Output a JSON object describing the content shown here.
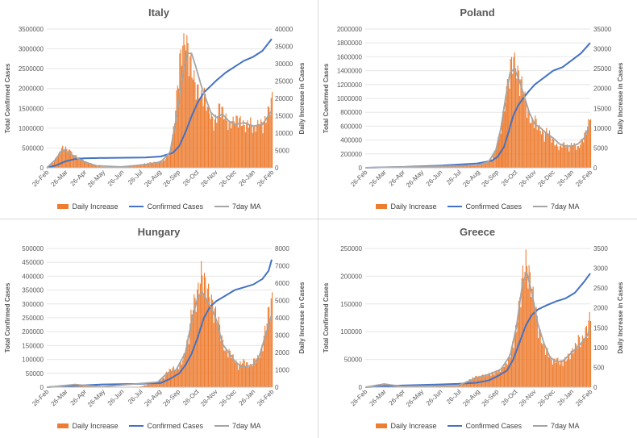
{
  "colors": {
    "daily": "#ed7d31",
    "confirmed": "#4472c4",
    "ma": "#a5a5a5",
    "grid": "#e6e6e6",
    "axis": "#595959"
  },
  "chart_data": [
    {
      "type": "bar",
      "title": "Italy",
      "ylabel": "Total Confirmed Cases",
      "y2label": "Daily Increase in Cases",
      "ylim": [
        0,
        3500000
      ],
      "yticks": [
        "0",
        "500000",
        "1000000",
        "1500000",
        "2000000",
        "2500000",
        "3000000",
        "3500000"
      ],
      "y2lim": [
        0,
        40000
      ],
      "y2ticks": [
        "0",
        "5000",
        "10000",
        "15000",
        "20000",
        "25000",
        "30000",
        "35000",
        "40000"
      ],
      "xticks": [
        "26-Feb",
        "26-Mar",
        "26-Apr",
        "26-May",
        "26-Jun",
        "26-Jul",
        "26-Aug",
        "26-Sep",
        "26-Oct",
        "26-Nov",
        "26-Dec",
        "26-Jan",
        "26-Feb"
      ],
      "legend": [
        "Daily Increase",
        "Confirmed Cases",
        "7day MA"
      ],
      "series": [
        {
          "name": "Daily Increase",
          "kind": "bar",
          "axis": "right",
          "x": [
            0,
            10,
            20,
            25,
            30,
            38,
            45,
            55,
            65,
            75,
            90,
            105,
            120,
            135,
            150,
            165,
            180,
            190,
            200,
            205,
            210,
            215,
            220,
            225,
            230,
            235,
            240,
            245,
            250,
            255,
            260,
            265,
            270,
            275,
            280,
            285,
            290,
            295,
            300,
            305,
            310,
            315,
            320,
            325,
            330,
            335,
            340,
            345,
            350,
            355,
            360,
            365
          ],
          "values": [
            0,
            1500,
            4500,
            5800,
            5500,
            4500,
            3500,
            2500,
            1500,
            800,
            300,
            250,
            250,
            350,
            900,
            1400,
            1700,
            2200,
            5000,
            11000,
            20000,
            30000,
            34000,
            36000,
            32000,
            28000,
            24000,
            22000,
            20000,
            21000,
            17000,
            15000,
            13000,
            14000,
            18000,
            16000,
            14000,
            12000,
            13000,
            13500,
            14000,
            13000,
            12000,
            12500,
            13000,
            11000,
            12000,
            13000,
            12000,
            14000,
            17000,
            20000
          ]
        },
        {
          "name": "Confirmed Cases",
          "kind": "line",
          "axis": "left",
          "x": [
            0,
            15,
            30,
            45,
            60,
            75,
            100,
            130,
            160,
            185,
            205,
            215,
            225,
            235,
            245,
            255,
            265,
            275,
            290,
            305,
            320,
            335,
            350,
            365
          ],
          "values": [
            0,
            60000,
            160000,
            220000,
            240000,
            245000,
            250000,
            255000,
            260000,
            285000,
            380000,
            550000,
            900000,
            1300000,
            1650000,
            1900000,
            2050000,
            2200000,
            2400000,
            2550000,
            2700000,
            2800000,
            2950000,
            3250000
          ]
        },
        {
          "name": "7day MA",
          "kind": "line",
          "axis": "right",
          "x": [
            0,
            15,
            25,
            35,
            45,
            60,
            80,
            120,
            160,
            185,
            200,
            210,
            220,
            228,
            235,
            242,
            250,
            258,
            266,
            275,
            285,
            295,
            305,
            320,
            335,
            350,
            365
          ],
          "values": [
            0,
            2500,
            5200,
            4500,
            3200,
            1800,
            600,
            250,
            900,
            1700,
            4500,
            14000,
            26000,
            33000,
            33000,
            29000,
            24000,
            20000,
            16000,
            14500,
            15500,
            13500,
            12500,
            13000,
            12000,
            12500,
            16500
          ]
        }
      ]
    },
    {
      "type": "bar",
      "title": "Poland",
      "ylabel": "Total Confirmed Cases",
      "y2label": "Daily Increase in Cases",
      "ylim": [
        0,
        2000000
      ],
      "yticks": [
        "0",
        "200000",
        "400000",
        "600000",
        "800000",
        "1000000",
        "1200000",
        "1400000",
        "1600000",
        "1800000",
        "2000000"
      ],
      "y2lim": [
        0,
        35000
      ],
      "y2ticks": [
        "0",
        "5000",
        "10000",
        "15000",
        "20000",
        "25000",
        "30000",
        "35000"
      ],
      "xticks": [
        "26-Feb",
        "26-Mar",
        "26-Apr",
        "26-May",
        "26-Jun",
        "26-Jul",
        "26-Aug",
        "26-Sep",
        "26-Oct",
        "26-Nov",
        "26-Dec",
        "26-Jan",
        "26-Feb"
      ],
      "legend": [
        "Daily Increase",
        "Confirmed Cases",
        "7day MA"
      ],
      "series": [
        {
          "name": "Daily Increase",
          "kind": "bar",
          "axis": "right",
          "x": [
            0,
            30,
            60,
            90,
            120,
            150,
            180,
            195,
            205,
            212,
            218,
            224,
            230,
            235,
            240,
            245,
            250,
            255,
            260,
            265,
            270,
            275,
            280,
            285,
            290,
            295,
            300,
            305,
            310,
            315,
            320,
            325,
            330,
            335,
            340,
            345,
            350,
            355,
            360,
            365
          ],
          "values": [
            0,
            300,
            350,
            300,
            400,
            600,
            700,
            1200,
            2500,
            5000,
            9000,
            14000,
            20000,
            25000,
            27000,
            24000,
            22000,
            20000,
            16000,
            13000,
            11000,
            12000,
            10000,
            9000,
            8000,
            9500,
            8000,
            6500,
            5500,
            5000,
            6000,
            5500,
            5000,
            6000,
            5500,
            5000,
            6500,
            8000,
            10000,
            13000
          ]
        },
        {
          "name": "Confirmed Cases",
          "kind": "line",
          "axis": "left",
          "x": [
            0,
            60,
            120,
            180,
            205,
            215,
            225,
            232,
            240,
            248,
            256,
            265,
            275,
            290,
            305,
            320,
            335,
            350,
            365
          ],
          "values": [
            0,
            12000,
            30000,
            60000,
            100000,
            160000,
            300000,
            500000,
            750000,
            900000,
            1000000,
            1100000,
            1200000,
            1300000,
            1400000,
            1450000,
            1550000,
            1650000,
            1800000
          ]
        },
        {
          "name": "7day MA",
          "kind": "line",
          "axis": "right",
          "x": [
            0,
            180,
            200,
            212,
            220,
            228,
            235,
            242,
            250,
            258,
            266,
            275,
            285,
            295,
            305,
            315,
            325,
            335,
            345,
            355,
            365
          ],
          "values": [
            0,
            600,
            1500,
            4500,
            10000,
            18000,
            24000,
            25000,
            22000,
            18000,
            14000,
            11000,
            10000,
            8500,
            7500,
            6000,
            5500,
            5500,
            6000,
            7500,
            11000
          ]
        }
      ]
    },
    {
      "type": "bar",
      "title": "Hungary",
      "ylabel": "Total Confirmed Cases",
      "y2label": "Daily Increase in Cases",
      "ylim": [
        0,
        500000
      ],
      "yticks": [
        "0",
        "50000",
        "100000",
        "150000",
        "200000",
        "250000",
        "300000",
        "350000",
        "400000",
        "450000",
        "500000"
      ],
      "y2lim": [
        0,
        8000
      ],
      "y2ticks": [
        "0",
        "1000",
        "2000",
        "3000",
        "4000",
        "5000",
        "6000",
        "7000",
        "8000"
      ],
      "xticks": [
        "26-Feb",
        "26-Mar",
        "26-Apr",
        "26-May",
        "26-Jun",
        "26-Jul",
        "26-Aug",
        "26-Sep",
        "26-Oct",
        "26-Nov",
        "26-Dec",
        "26-Jan",
        "26-Feb"
      ],
      "legend": [
        "Daily Increase",
        "Confirmed Cases",
        "7day MA"
      ],
      "series": [
        {
          "name": "Daily Increase",
          "kind": "bar",
          "axis": "right",
          "x": [
            0,
            30,
            45,
            60,
            90,
            120,
            150,
            180,
            190,
            195,
            200,
            205,
            210,
            215,
            220,
            225,
            230,
            235,
            240,
            245,
            250,
            255,
            260,
            265,
            270,
            275,
            280,
            285,
            290,
            295,
            300,
            305,
            310,
            315,
            320,
            325,
            330,
            335,
            340,
            345,
            350,
            355,
            360,
            365
          ],
          "values": [
            0,
            50,
            200,
            100,
            30,
            20,
            30,
            300,
            600,
            900,
            1000,
            1100,
            1000,
            1300,
            1500,
            2200,
            3000,
            4500,
            5000,
            5500,
            6500,
            6000,
            5500,
            5000,
            4500,
            4000,
            3500,
            2500,
            2000,
            2000,
            1800,
            1500,
            1200,
            1400,
            1500,
            1300,
            1200,
            1500,
            1600,
            1800,
            2500,
            3500,
            4500,
            5000
          ]
        },
        {
          "name": "Confirmed Cases",
          "kind": "line",
          "axis": "left",
          "x": [
            0,
            45,
            90,
            150,
            185,
            200,
            215,
            225,
            235,
            245,
            255,
            265,
            275,
            290,
            305,
            320,
            335,
            350,
            360,
            365
          ],
          "values": [
            0,
            5000,
            10000,
            12000,
            15000,
            30000,
            50000,
            80000,
            120000,
            180000,
            250000,
            290000,
            310000,
            330000,
            350000,
            360000,
            370000,
            390000,
            420000,
            460000
          ]
        },
        {
          "name": "7day MA",
          "kind": "line",
          "axis": "right",
          "x": [
            0,
            45,
            90,
            180,
            195,
            210,
            225,
            235,
            245,
            252,
            260,
            268,
            276,
            285,
            295,
            305,
            315,
            325,
            335,
            345,
            355,
            365
          ],
          "values": [
            0,
            150,
            30,
            300,
            800,
            1000,
            2000,
            3800,
            5200,
            5500,
            5000,
            4500,
            3800,
            2500,
            2000,
            1500,
            1200,
            1200,
            1300,
            1800,
            3000,
            4200
          ]
        }
      ]
    },
    {
      "type": "bar",
      "title": "Greece",
      "ylabel": "Total Confirmed Cases",
      "y2label": "Daily Increase in Cases",
      "ylim": [
        0,
        250000
      ],
      "yticks": [
        "0",
        "50000",
        "100000",
        "150000",
        "200000",
        "250000"
      ],
      "y2lim": [
        0,
        3500
      ],
      "y2ticks": [
        "0",
        "500",
        "1000",
        "1500",
        "2000",
        "2500",
        "3000",
        "3500"
      ],
      "xticks": [
        "26-Feb",
        "26-Mar",
        "26-Apr",
        "26-May",
        "26-Jun",
        "26-Jul",
        "26-Aug",
        "26-Sep",
        "26-Oct",
        "26-Nov",
        "26-Dec",
        "26-Jan",
        "26-Feb"
      ],
      "legend": [
        "Daily Increase",
        "Confirmed Cases",
        "7day MA"
      ],
      "series": [
        {
          "name": "Daily Increase",
          "kind": "bar",
          "axis": "right",
          "x": [
            0,
            20,
            30,
            40,
            60,
            90,
            120,
            150,
            165,
            175,
            185,
            195,
            205,
            215,
            225,
            235,
            240,
            245,
            250,
            255,
            260,
            265,
            270,
            275,
            280,
            285,
            290,
            295,
            300,
            305,
            310,
            315,
            320,
            325,
            330,
            335,
            340,
            345,
            350,
            355,
            360,
            365
          ],
          "values": [
            0,
            50,
            100,
            60,
            20,
            10,
            20,
            50,
            150,
            250,
            280,
            300,
            350,
            400,
            500,
            800,
            1200,
            1500,
            2200,
            2800,
            3100,
            2800,
            2400,
            2000,
            1500,
            1200,
            1000,
            900,
            700,
            650,
            700,
            600,
            650,
            700,
            800,
            900,
            1000,
            1200,
            1100,
            1300,
            1500,
            1800
          ]
        },
        {
          "name": "Confirmed Cases",
          "kind": "line",
          "axis": "left",
          "x": [
            0,
            60,
            120,
            150,
            180,
            200,
            215,
            230,
            240,
            250,
            260,
            270,
            280,
            295,
            310,
            325,
            340,
            355,
            365
          ],
          "values": [
            0,
            3000,
            5000,
            6000,
            8000,
            12000,
            20000,
            30000,
            50000,
            80000,
            110000,
            130000,
            140000,
            148000,
            155000,
            160000,
            170000,
            190000,
            205000
          ]
        },
        {
          "name": "7day MA",
          "kind": "line",
          "axis": "right",
          "x": [
            0,
            30,
            60,
            150,
            180,
            200,
            220,
            235,
            245,
            255,
            262,
            270,
            280,
            290,
            300,
            310,
            320,
            330,
            340,
            350,
            360,
            365
          ],
          "values": [
            0,
            80,
            20,
            40,
            230,
            320,
            450,
            800,
            1500,
            2600,
            2900,
            2400,
            1600,
            1100,
            750,
            650,
            650,
            800,
            950,
            1100,
            1300,
            1500
          ]
        }
      ]
    }
  ]
}
